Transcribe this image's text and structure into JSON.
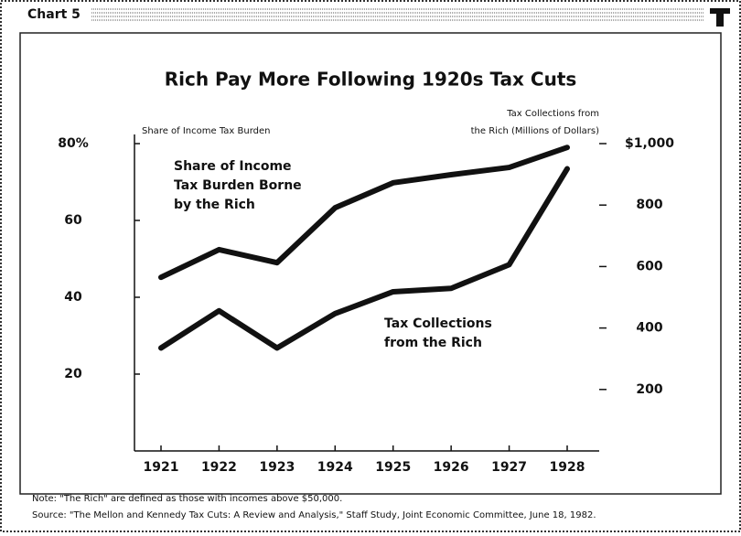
{
  "window_title": "Chart 5",
  "chart_data": {
    "type": "line",
    "title": "Rich Pay More Following 1920s Tax Cuts",
    "y_label": "Share of Income Tax Burden",
    "y2_label": [
      "Tax Collections from",
      "the Rich (Millions of Dollars)"
    ],
    "categories": [
      "1921",
      "1922",
      "1923",
      "1924",
      "1925",
      "1926",
      "1927",
      "1928"
    ],
    "series": [
      {
        "name": [
          "Share of Income",
          "Tax Burden Borne",
          "by the Rich"
        ],
        "color": "#111111",
        "values": [
          45.2,
          52.4,
          49,
          63.3,
          69.8,
          71.9,
          73.8,
          79
        ]
      },
      {
        "name": [
          "Tax Collections",
          "from the Rich"
        ],
        "color": "#111111",
        "axis": "y2",
        "values": [
          335,
          456,
          335,
          447,
          518,
          529,
          606,
          918
        ]
      }
    ],
    "ylim": [
      0,
      80
    ],
    "yticks": [
      20,
      40,
      60,
      {
        "value": 80,
        "label": "80%"
      }
    ],
    "y2lim": [
      0,
      1000
    ],
    "y2ticks": [
      200,
      400,
      600,
      800,
      {
        "value": 1000,
        "label": "$1,000"
      }
    ]
  },
  "note": "Note: \"The Rich\" are defined as those with incomes above $50,000.",
  "source": "Source: \"The Mellon and Kennedy Tax Cuts: A Review and Analysis,\" Staff Study, Joint Economic Committee, June 18, 1982."
}
